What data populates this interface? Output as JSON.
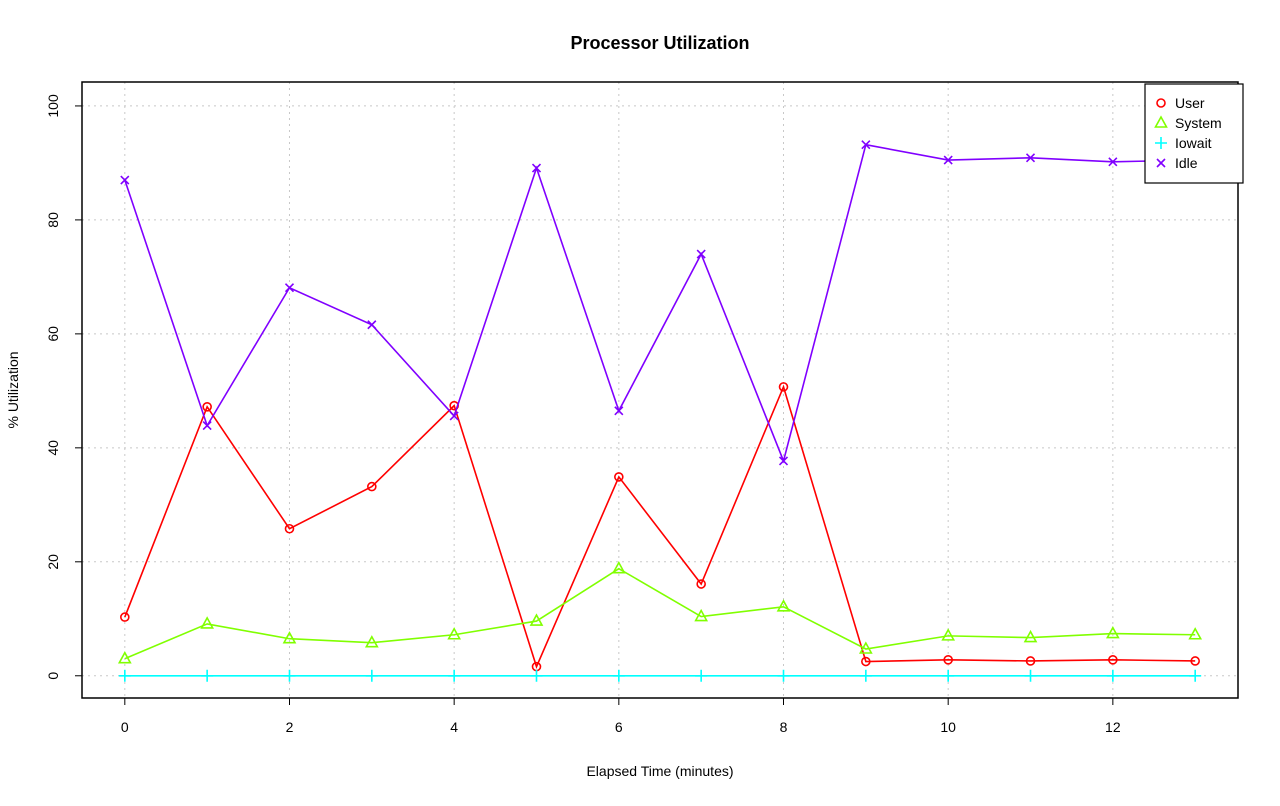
{
  "chart_data": {
    "type": "line",
    "title": "Processor Utilization",
    "xlabel": "Elapsed Time (minutes)",
    "ylabel": "% Utilization",
    "x": [
      0,
      1,
      2,
      3,
      4,
      5,
      6,
      7,
      8,
      9,
      10,
      11,
      12,
      13
    ],
    "xlim": [
      -0.52,
      13.52
    ],
    "ylim": [
      -3.9,
      104.2
    ],
    "xticks": [
      0,
      2,
      4,
      6,
      8,
      10,
      12
    ],
    "yticks": [
      0,
      20,
      40,
      60,
      80,
      100
    ],
    "grid": true,
    "legend_position": "top-right",
    "series": [
      {
        "name": "User",
        "color": "#ff0000",
        "marker": "circle",
        "values": [
          10.3,
          47.2,
          25.8,
          33.2,
          47.4,
          1.6,
          34.9,
          16.1,
          50.7,
          2.5,
          2.8,
          2.6,
          2.8,
          2.6
        ]
      },
      {
        "name": "System",
        "color": "#80ff00",
        "marker": "triangle",
        "values": [
          3.0,
          9.1,
          6.5,
          5.8,
          7.2,
          9.6,
          18.8,
          10.4,
          12.1,
          4.7,
          7.0,
          6.7,
          7.4,
          7.2
        ]
      },
      {
        "name": "Iowait",
        "color": "#00ffff",
        "marker": "plus",
        "values": [
          0,
          0,
          0,
          0,
          0,
          0,
          0,
          0,
          0,
          0,
          0,
          0,
          0,
          0
        ]
      },
      {
        "name": "Idle",
        "color": "#8000ff",
        "marker": "cross",
        "values": [
          87.0,
          43.9,
          68.1,
          61.6,
          45.6,
          89.1,
          46.5,
          74.0,
          37.7,
          93.2,
          90.5,
          90.9,
          90.2,
          90.5
        ]
      }
    ]
  }
}
